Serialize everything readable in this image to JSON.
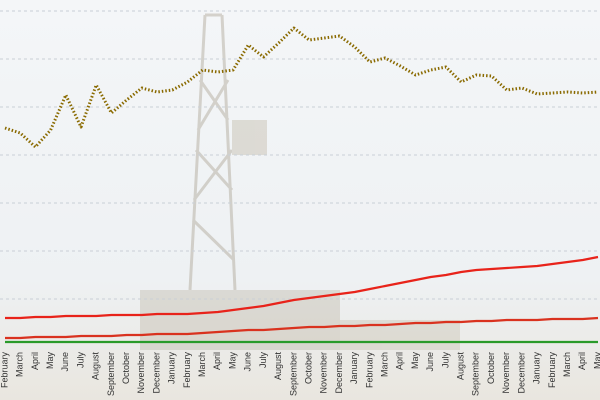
{
  "chart_data": {
    "type": "line",
    "categories": [
      "February",
      "March",
      "April",
      "May",
      "June",
      "July",
      "August",
      "September",
      "October",
      "November",
      "December",
      "January",
      "February",
      "March",
      "April",
      "May",
      "June",
      "July",
      "August",
      "September",
      "October",
      "November",
      "December",
      "January",
      "February",
      "March",
      "April",
      "May",
      "June",
      "July",
      "August",
      "September",
      "October",
      "November",
      "December",
      "January",
      "February",
      "March",
      "April",
      "May"
    ],
    "series": [
      {
        "color": "#8a6a00",
        "style": "dotted",
        "values": [
          272,
          267,
          253,
          270,
          305,
          273,
          315,
          287,
          300,
          312,
          308,
          310,
          318,
          330,
          328,
          330,
          355,
          343,
          357,
          372,
          360,
          362,
          364,
          353,
          338,
          342,
          334,
          325,
          330,
          333,
          318,
          325,
          324,
          310,
          312,
          306,
          307,
          308,
          307,
          308
        ]
      },
      {
        "color": "#e8231a",
        "style": "solid",
        "values": [
          82,
          82,
          83,
          83,
          84,
          84,
          84,
          85,
          85,
          85,
          86,
          86,
          86,
          87,
          88,
          90,
          92,
          94,
          97,
          100,
          102,
          104,
          106,
          108,
          111,
          114,
          117,
          120,
          123,
          125,
          128,
          130,
          131,
          132,
          133,
          134,
          136,
          138,
          140,
          143
        ]
      },
      {
        "color": "#d9321f",
        "style": "solid",
        "values": [
          62,
          62,
          63,
          63,
          63,
          64,
          64,
          64,
          65,
          65,
          66,
          66,
          66,
          67,
          68,
          69,
          70,
          70,
          71,
          72,
          73,
          73,
          74,
          74,
          75,
          75,
          76,
          77,
          77,
          78,
          78,
          79,
          79,
          80,
          80,
          80,
          81,
          81,
          81,
          82
        ]
      },
      {
        "color": "#2a9a2a",
        "style": "solid",
        "values": [
          58,
          58,
          58,
          58,
          58,
          58,
          58,
          58,
          58,
          58,
          58,
          58,
          58,
          58,
          58,
          58,
          58,
          58,
          58,
          58,
          58,
          58,
          58,
          58,
          58,
          58,
          58,
          58,
          58,
          58,
          58,
          58,
          58,
          58,
          58,
          58,
          58,
          58,
          58,
          58
        ]
      }
    ],
    "ylim": [
      0,
      400
    ],
    "yticks": [
      101,
      149,
      197,
      245,
      293,
      341,
      389
    ],
    "grid": true
  }
}
